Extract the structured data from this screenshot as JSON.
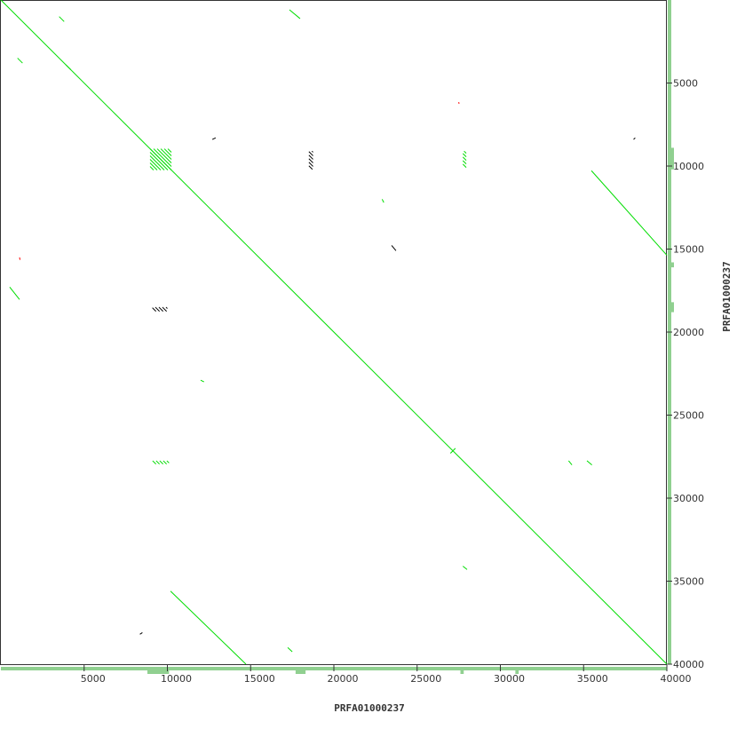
{
  "chart_data": {
    "type": "scatter",
    "subtype": "dotplot",
    "xlabel": "PRFA01000237",
    "ylabel": "PRFA01000237",
    "xlim": [
      0,
      40000
    ],
    "ylim": [
      0,
      40000
    ],
    "y_inverted": true,
    "x_ticks": [
      "5000",
      "10000",
      "15000",
      "20000",
      "25000",
      "30000",
      "35000",
      "40000"
    ],
    "y_ticks": [
      "5000",
      "10000",
      "15000",
      "20000",
      "25000",
      "30000",
      "35000",
      "40000"
    ],
    "grid": false,
    "colors": {
      "forward": "#00dd00",
      "reverse": "#ff0000",
      "weak": "#000000",
      "coverage": "#90d090",
      "axis": "#333333"
    },
    "segments": [
      {
        "x": [
          0,
          40000
        ],
        "y": [
          0,
          40000
        ],
        "color": "forward"
      },
      {
        "x": [
          35470,
          40000
        ],
        "y": [
          10280,
          15370
        ],
        "color": "forward"
      },
      {
        "x": [
          10190,
          14720
        ],
        "y": [
          35600,
          40000
        ],
        "color": "forward"
      },
      {
        "x": [
          17330,
          17970
        ],
        "y": [
          590,
          1120
        ],
        "color": "forward"
      },
      {
        "x": [
          530,
          1120
        ],
        "y": [
          17290,
          18040
        ],
        "color": "forward"
      },
      {
        "x": [
          3500,
          3800
        ],
        "y": [
          1000,
          1300
        ],
        "color": "forward"
      },
      {
        "x": [
          1000,
          1300
        ],
        "y": [
          3500,
          3800
        ],
        "color": "forward"
      },
      {
        "x": [
          3900,
          4200
        ],
        "y": [
          3900,
          4200
        ],
        "color": "forward"
      },
      {
        "x": [
          23470,
          23730
        ],
        "y": [
          14780,
          15100
        ],
        "color": "weak"
      },
      {
        "x": [
          17230,
          17500
        ],
        "y": [
          39000,
          39250
        ],
        "color": "forward"
      },
      {
        "x": [
          27750,
          28000
        ],
        "y": [
          34100,
          34300
        ],
        "color": "forward"
      },
      {
        "x": [
          34100,
          34300
        ],
        "y": [
          27750,
          28000
        ],
        "color": "forward"
      },
      {
        "x": [
          35200,
          35500
        ],
        "y": [
          27750,
          28000
        ],
        "color": "forward"
      },
      {
        "x": [
          12700,
          12900
        ],
        "y": [
          8400,
          8300
        ],
        "color": "weak"
      },
      {
        "x": [
          38000,
          38100
        ],
        "y": [
          8400,
          8300
        ],
        "color": "weak"
      },
      {
        "x": [
          8350,
          8500
        ],
        "y": [
          38200,
          38100
        ],
        "color": "weak"
      },
      {
        "x": [
          22900,
          23000
        ],
        "y": [
          12000,
          12200
        ],
        "color": "forward"
      },
      {
        "x": [
          12000,
          12200
        ],
        "y": [
          22900,
          23000
        ],
        "color": "forward"
      },
      {
        "x": [
          27000,
          27300
        ],
        "y": [
          27300,
          27000
        ],
        "color": "forward"
      },
      {
        "x": [
          1120,
          1150
        ],
        "y": [
          15500,
          15650
        ],
        "color": "reverse"
      },
      {
        "x": [
          27500,
          27520
        ],
        "y": [
          6150,
          6250
        ],
        "color": "reverse"
      }
    ],
    "hatch_blocks": [
      {
        "x": [
          8960,
          10240
        ],
        "y": [
          8960,
          10240
        ],
        "color": "forward"
      },
      {
        "x": [
          18500,
          18750
        ],
        "y": [
          9100,
          10200
        ],
        "color": "weak"
      },
      {
        "x": [
          27750,
          27950
        ],
        "y": [
          9100,
          10100
        ],
        "color": "forward"
      },
      {
        "x": [
          9100,
          10100
        ],
        "y": [
          27750,
          27950
        ],
        "color": "forward"
      },
      {
        "x": [
          9100,
          10000
        ],
        "y": [
          18500,
          18750
        ],
        "color": "weak"
      }
    ],
    "coverage_peaks_x": [
      [
        8800,
        10100
      ],
      [
        17700,
        18300
      ],
      [
        30900,
        31100
      ],
      [
        27600,
        27800
      ]
    ],
    "coverage_peaks_y": [
      [
        8900,
        10200
      ],
      [
        18200,
        18800
      ],
      [
        15800,
        16100
      ]
    ]
  }
}
